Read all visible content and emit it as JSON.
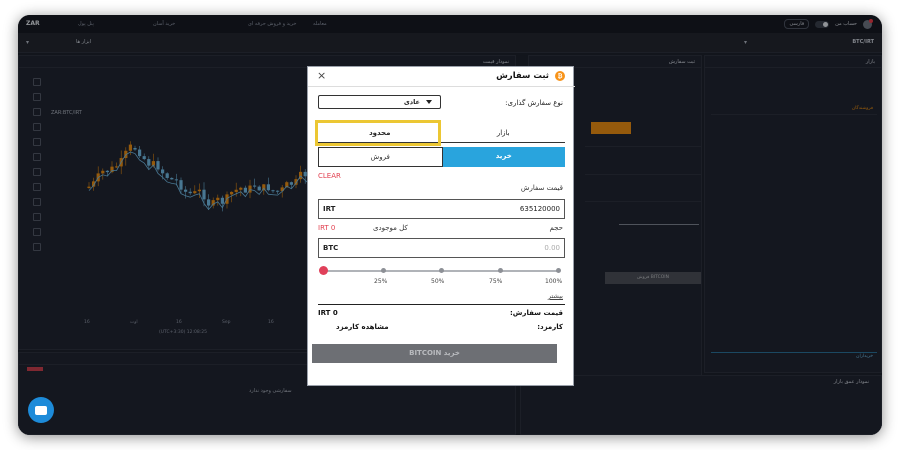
{
  "app": {
    "logo": "ZAR",
    "nav": [
      "پنل پول",
      "خرید آسان",
      "خرید و فروش حرفه ای",
      "معامله"
    ],
    "lang": "فارسی",
    "account": "حساب من",
    "toolbar_search": "ابزار ها",
    "pair": "BTC/IRT"
  },
  "chart": {
    "panel_title": "نمودار قیمت",
    "symbol": "ZAR:BTC/IRT",
    "x_labels": [
      "16",
      "اوت",
      "16",
      "Sep",
      "16",
      "Oct"
    ],
    "time_readout": "(UTC+3:30) 12:08:25"
  },
  "orders": {
    "empty_text": "سفارشی وجود ندارد"
  },
  "depth": {
    "title": "نمودار عمق بازار"
  },
  "market": {
    "title": "بازار",
    "sell_label": "فروشندگان",
    "buy_label": "خریداران"
  },
  "bg_order": {
    "title": "ثبت سفارش",
    "button": "فروش BITCOIN"
  },
  "modal": {
    "title": "ثبت سفارش",
    "coin_symbol": "₿",
    "close": "×",
    "order_type_label": "نوع سفارش گذاری:",
    "order_type_value": "عادی",
    "tabs": {
      "market": "بازار",
      "limit": "محدود"
    },
    "sides": {
      "buy": "خرید",
      "sell": "فروش"
    },
    "clear": "CLEAR",
    "price_label": "قیمت سفارش",
    "price_unit": "IRT",
    "price_value": "635120000",
    "volume_label": "حجم",
    "balance_label": "کل موجودی",
    "balance_value": "IRT 0",
    "volume_unit": "BTC",
    "volume_placeholder": "0.00",
    "slider": {
      "value_percent": 0,
      "marks": [
        "25%",
        "50%",
        "75%",
        "100%"
      ]
    },
    "more": "بیشتر",
    "summary": {
      "price_label": "قیمت سفارش:",
      "price_value": "IRT 0",
      "fee_label": "کارمزد:",
      "fee_value": "مشاهده کارمزد"
    },
    "submit": "خرید BITCOIN"
  },
  "colors": {
    "accent_buy": "#29a4dd",
    "highlight": "#ecc733",
    "sell_red": "#e24050",
    "candle_up": "#e58b13",
    "candle_down": "#6fb7e0"
  }
}
